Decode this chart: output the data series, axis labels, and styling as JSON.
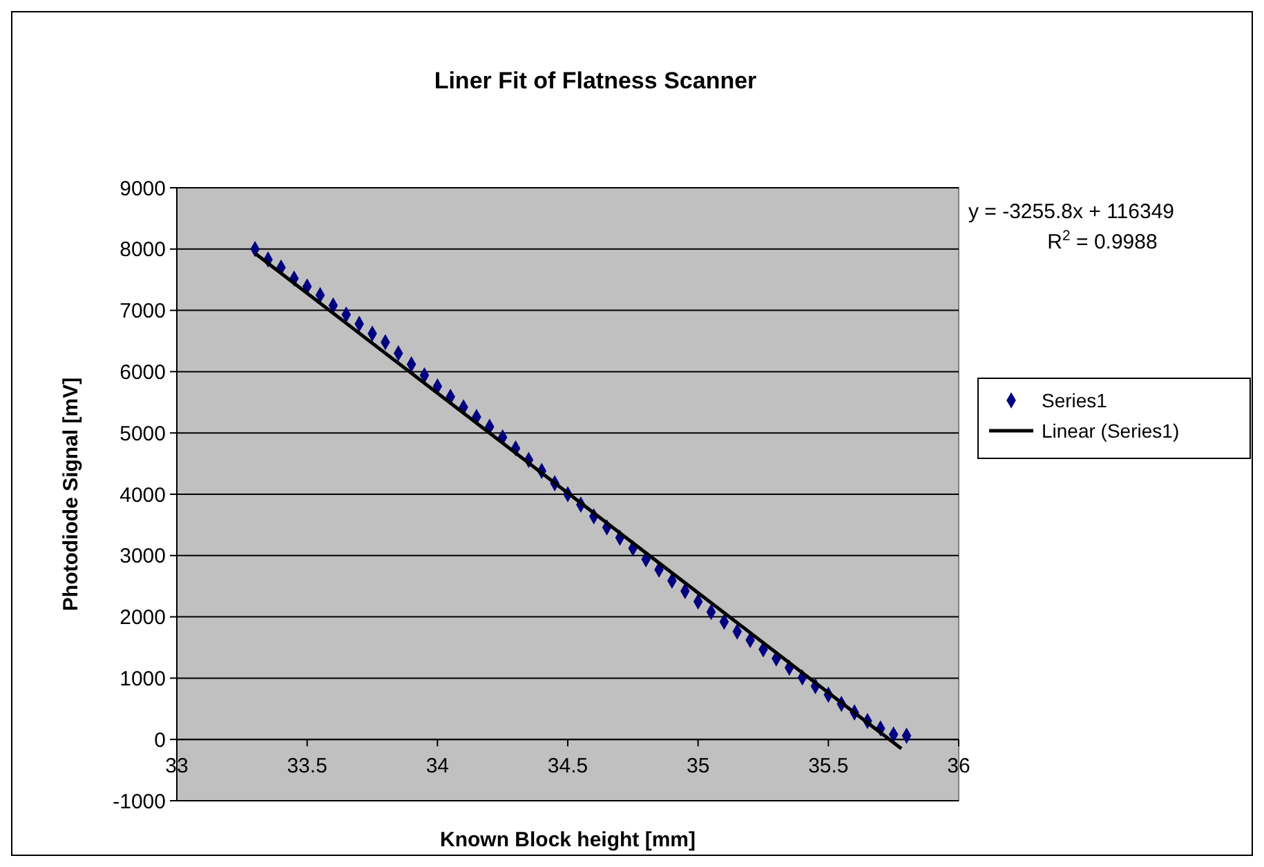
{
  "chart_data": {
    "type": "scatter",
    "title": "Liner Fit of Flatness Scanner",
    "xlabel": "Known Block height [mm]",
    "ylabel": "Photodiode Signal [mV]",
    "xlim": [
      33,
      36
    ],
    "xticks": [
      33,
      33.5,
      34,
      34.5,
      35,
      35.5,
      36
    ],
    "ylim": [
      -1000,
      9000
    ],
    "yticks": [
      -1000,
      0,
      1000,
      2000,
      3000,
      4000,
      5000,
      6000,
      7000,
      8000,
      9000
    ],
    "grid": "y",
    "legend": "right",
    "marker": "diamond",
    "annotations": [
      "y = -3255.8x + 116349",
      "R$^{2}$ = 0.9988"
    ],
    "series": [
      {
        "name": "Series1",
        "color": "#000080",
        "x": [
          33.3,
          33.35,
          33.4,
          33.45,
          33.5,
          33.55,
          33.6,
          33.65,
          33.7,
          33.75,
          33.8,
          33.85,
          33.9,
          33.95,
          34,
          34.05,
          34.1,
          34.15,
          34.2,
          34.25,
          34.3,
          34.35,
          34.4,
          34.45,
          34.5,
          34.55,
          34.6,
          34.65,
          34.7,
          34.75,
          34.8,
          34.85,
          34.9,
          34.95,
          35,
          35.05,
          35.1,
          35.15,
          35.2,
          35.25,
          35.3,
          35.35,
          35.4,
          35.45,
          35.5,
          35.55,
          35.6,
          35.65,
          35.7,
          35.75,
          35.8
        ],
        "values": [
          8000,
          7830,
          7700,
          7520,
          7390,
          7250,
          7080,
          6930,
          6780,
          6620,
          6480,
          6300,
          6120,
          5940,
          5760,
          5590,
          5420,
          5260,
          5100,
          4930,
          4750,
          4560,
          4380,
          4180,
          4000,
          3830,
          3640,
          3460,
          3290,
          3120,
          2940,
          2770,
          2590,
          2420,
          2250,
          2080,
          1920,
          1760,
          1620,
          1470,
          1320,
          1170,
          1010,
          870,
          730,
          580,
          440,
          300,
          180,
          80,
          60
        ]
      },
      {
        "name": "Linear (Series1)",
        "color": "#000000",
        "type": "line",
        "marker": "none",
        "x": [
          33.3,
          35.78
        ],
        "values": [
          7930,
          -150
        ]
      }
    ]
  }
}
